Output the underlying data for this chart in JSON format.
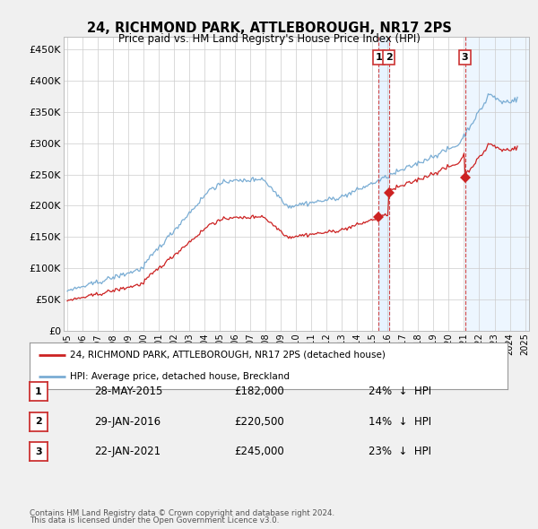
{
  "title": "24, RICHMOND PARK, ATTLEBOROUGH, NR17 2PS",
  "subtitle": "Price paid vs. HM Land Registry's House Price Index (HPI)",
  "hpi_color": "#7aadd4",
  "price_color": "#cc2222",
  "vline_color": "#cc3333",
  "shade_color": "#ddeeff",
  "legend_label_price": "24, RICHMOND PARK, ATTLEBOROUGH, NR17 2PS (detached house)",
  "legend_label_hpi": "HPI: Average price, detached house, Breckland",
  "sales": [
    {
      "label": "1",
      "date_str": "28-MAY-2015",
      "price": 182000,
      "pct": "24%",
      "direction": "↓",
      "x_year": 2015.41
    },
    {
      "label": "2",
      "date_str": "29-JAN-2016",
      "price": 220500,
      "pct": "14%",
      "direction": "↓",
      "x_year": 2016.08
    },
    {
      "label": "3",
      "date_str": "22-JAN-2021",
      "price": 245000,
      "pct": "23%",
      "direction": "↓",
      "x_year": 2021.06
    }
  ],
  "footer_line1": "Contains HM Land Registry data © Crown copyright and database right 2024.",
  "footer_line2": "This data is licensed under the Open Government Licence v3.0.",
  "ylim": [
    0,
    470000
  ],
  "yticks": [
    0,
    50000,
    100000,
    150000,
    200000,
    250000,
    300000,
    350000,
    400000,
    450000
  ],
  "ytick_labels": [
    "£0",
    "£50K",
    "£100K",
    "£150K",
    "£200K",
    "£250K",
    "£300K",
    "£350K",
    "£400K",
    "£450K"
  ],
  "xlim": [
    1994.75,
    2025.25
  ],
  "xtick_years": [
    1995,
    1996,
    1997,
    1998,
    1999,
    2000,
    2001,
    2002,
    2003,
    2004,
    2005,
    2006,
    2007,
    2008,
    2009,
    2010,
    2011,
    2012,
    2013,
    2014,
    2015,
    2016,
    2017,
    2018,
    2019,
    2020,
    2021,
    2022,
    2023,
    2024,
    2025
  ],
  "bg_color": "#f0f0f0",
  "plot_bg_color": "#ffffff",
  "grid_color": "#cccccc"
}
